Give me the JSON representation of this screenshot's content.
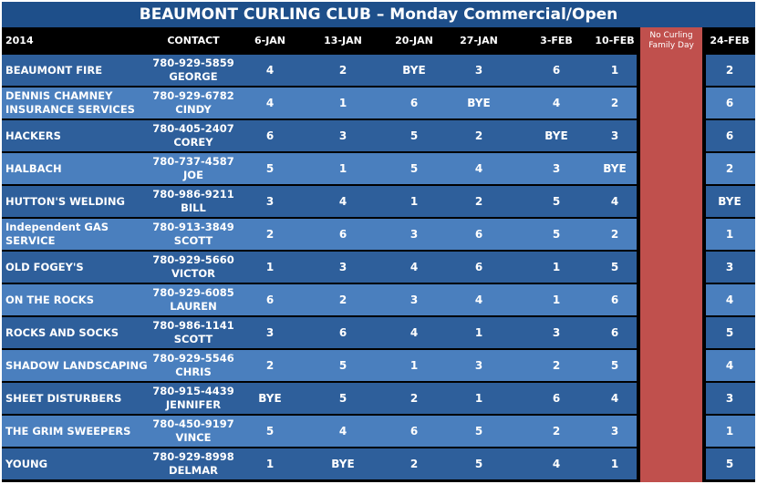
{
  "title": "BEAUMONT CURLING CLUB – Monday Commercial/Open",
  "headers": {
    "year": "2014",
    "contact": "CONTACT",
    "weeks": [
      "6-JAN",
      "13-JAN",
      "20-JAN",
      "27-JAN",
      "3-FEB",
      "10-FEB"
    ],
    "no_curling": "No Curling Family Day",
    "last_week": "24-FEB"
  },
  "colors": {
    "title_bg": "#1e4f8a",
    "header_bg": "#000000",
    "row_dark": "#2e5f9b",
    "row_light": "#4a7fbe",
    "no_curling": "#c0504d"
  },
  "rows": [
    {
      "team": "BEAUMONT FIRE",
      "phone": "780-929-5859",
      "name": "GEORGE",
      "scores": [
        "4",
        "2",
        "BYE",
        "3",
        "6",
        "1"
      ],
      "last": "2"
    },
    {
      "team": "DENNIS CHAMNEY INSURANCE SERVICES",
      "phone": "780-929-6782",
      "name": "CINDY",
      "scores": [
        "4",
        "1",
        "6",
        "BYE",
        "4",
        "2"
      ],
      "last": "6"
    },
    {
      "team": "HACKERS",
      "phone": "780-405-2407",
      "name": "COREY",
      "scores": [
        "6",
        "3",
        "5",
        "2",
        "BYE",
        "3"
      ],
      "last": "6"
    },
    {
      "team": "HALBACH",
      "phone": "780-737-4587",
      "name": "JOE",
      "scores": [
        "5",
        "1",
        "5",
        "4",
        "3",
        "BYE"
      ],
      "last": "2"
    },
    {
      "team": "HUTTON'S WELDING",
      "phone": "780-986-9211",
      "name": "BILL",
      "scores": [
        "3",
        "4",
        "1",
        "2",
        "5",
        "4"
      ],
      "last": "BYE"
    },
    {
      "team": "Independent GAS SERVICE",
      "phone": "780-913-3849",
      "name": "SCOTT",
      "scores": [
        "2",
        "6",
        "3",
        "6",
        "5",
        "2"
      ],
      "last": "1"
    },
    {
      "team": "OLD FOGEY'S",
      "phone": "780-929-5660",
      "name": "VICTOR",
      "scores": [
        "1",
        "3",
        "4",
        "6",
        "1",
        "5"
      ],
      "last": "3"
    },
    {
      "team": "ON THE ROCKS",
      "phone": "780-929-6085",
      "name": "LAUREN",
      "scores": [
        "6",
        "2",
        "3",
        "4",
        "1",
        "6"
      ],
      "last": "4"
    },
    {
      "team": "ROCKS AND SOCKS",
      "phone": "780-986-1141",
      "name": "SCOTT",
      "scores": [
        "3",
        "6",
        "4",
        "1",
        "3",
        "6"
      ],
      "last": "5"
    },
    {
      "team": "SHADOW LANDSCAPING",
      "phone": "780-929-5546",
      "name": "CHRIS",
      "scores": [
        "2",
        "5",
        "1",
        "3",
        "2",
        "5"
      ],
      "last": "4"
    },
    {
      "team": "SHEET DISTURBERS",
      "phone": "780-915-4439",
      "name": "JENNIFER",
      "scores": [
        "BYE",
        "5",
        "2",
        "1",
        "6",
        "4"
      ],
      "last": "3"
    },
    {
      "team": "THE GRIM SWEEPERS",
      "phone": "780-450-9197",
      "name": "VINCE",
      "scores": [
        "5",
        "4",
        "6",
        "5",
        "2",
        "3"
      ],
      "last": "1"
    },
    {
      "team": "YOUNG",
      "phone": "780-929-8998",
      "name": "DELMAR",
      "scores": [
        "1",
        "BYE",
        "2",
        "5",
        "4",
        "1"
      ],
      "last": "5"
    }
  ]
}
